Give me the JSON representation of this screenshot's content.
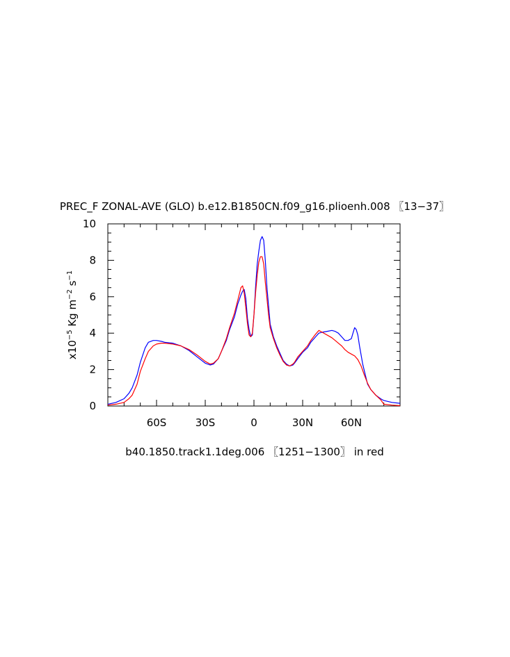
{
  "chart_data": {
    "type": "line",
    "title": "PREC_F ZONAL-AVE (GLO) b.e12.B1850CN.f09_g16.plioenh.008 〖13−37〗",
    "xlabel": "b40.1850.track1.1deg.006 〖1251−1300〗 in red",
    "ylabel": {
      "base": "x10",
      "exp": "−5",
      "unit1": " Kg m",
      "exp2": "−2",
      "unit2": " s",
      "exp3": "−1"
    },
    "xlim": [
      -90,
      90
    ],
    "ylim": [
      0,
      10
    ],
    "xticks": [
      {
        "value": -60,
        "label": "60S"
      },
      {
        "value": -30,
        "label": "30S"
      },
      {
        "value": 0,
        "label": "0"
      },
      {
        "value": 30,
        "label": "30N"
      },
      {
        "value": 60,
        "label": "60N"
      }
    ],
    "yticks": [
      {
        "value": 0,
        "label": "0"
      },
      {
        "value": 2,
        "label": "2"
      },
      {
        "value": 4,
        "label": "4"
      },
      {
        "value": 6,
        "label": "6"
      },
      {
        "value": 8,
        "label": "8"
      },
      {
        "value": 10,
        "label": "10"
      }
    ],
    "series": [
      {
        "color": "#0000ff",
        "x": [
          -90,
          -85,
          -80,
          -77,
          -75,
          -72,
          -70,
          -67,
          -65,
          -62,
          -60,
          -57,
          -55,
          -50,
          -45,
          -40,
          -35,
          -30,
          -27,
          -25,
          -22,
          -20,
          -17,
          -15,
          -12,
          -10,
          -8,
          -7,
          -6,
          -5,
          -4,
          -3,
          -2,
          -1,
          0,
          1,
          2,
          3,
          4,
          5,
          6,
          7,
          8,
          9,
          10,
          12,
          14,
          16,
          18,
          20,
          22,
          24,
          25,
          27,
          30,
          33,
          35,
          38,
          40,
          42,
          45,
          48,
          50,
          52,
          54,
          56,
          58,
          60,
          61,
          62,
          63,
          64,
          65,
          67,
          70,
          72,
          75,
          78,
          80,
          85,
          90
        ],
        "y": [
          0.1,
          0.2,
          0.4,
          0.7,
          1.0,
          1.7,
          2.4,
          3.2,
          3.5,
          3.6,
          3.6,
          3.55,
          3.5,
          3.45,
          3.3,
          3.05,
          2.7,
          2.35,
          2.25,
          2.3,
          2.6,
          3.0,
          3.6,
          4.2,
          4.9,
          5.6,
          6.1,
          6.3,
          6.4,
          5.9,
          4.8,
          4.2,
          3.8,
          3.9,
          5.0,
          6.5,
          7.8,
          8.5,
          9.1,
          9.3,
          9.1,
          8.0,
          6.5,
          5.5,
          4.5,
          3.8,
          3.3,
          2.9,
          2.5,
          2.3,
          2.2,
          2.25,
          2.35,
          2.6,
          2.95,
          3.2,
          3.5,
          3.8,
          4.0,
          4.05,
          4.1,
          4.15,
          4.1,
          4.0,
          3.8,
          3.6,
          3.6,
          3.7,
          4.0,
          4.3,
          4.2,
          3.9,
          3.3,
          2.3,
          1.2,
          0.9,
          0.6,
          0.4,
          0.3,
          0.2,
          0.15
        ]
      },
      {
        "color": "#ff0000",
        "x": [
          -90,
          -85,
          -80,
          -77,
          -75,
          -72,
          -70,
          -67,
          -65,
          -62,
          -60,
          -57,
          -55,
          -50,
          -45,
          -40,
          -35,
          -30,
          -27,
          -25,
          -22,
          -20,
          -17,
          -15,
          -12,
          -10,
          -8,
          -7,
          -6,
          -5,
          -4,
          -3,
          -2,
          -1,
          0,
          1,
          2,
          3,
          4,
          5,
          6,
          7,
          8,
          9,
          10,
          12,
          14,
          16,
          18,
          20,
          22,
          24,
          25,
          27,
          30,
          33,
          35,
          38,
          40,
          42,
          45,
          48,
          50,
          52,
          54,
          56,
          58,
          60,
          62,
          64,
          66,
          68,
          70,
          72,
          75,
          78,
          80,
          85,
          90
        ],
        "y": [
          0.05,
          0.1,
          0.2,
          0.4,
          0.6,
          1.2,
          1.9,
          2.6,
          3.0,
          3.3,
          3.4,
          3.45,
          3.45,
          3.4,
          3.3,
          3.1,
          2.8,
          2.45,
          2.3,
          2.35,
          2.6,
          3.0,
          3.7,
          4.3,
          5.1,
          5.8,
          6.5,
          6.6,
          6.2,
          5.4,
          4.5,
          3.9,
          3.8,
          4.0,
          5.0,
          6.2,
          7.2,
          7.9,
          8.2,
          8.2,
          7.8,
          6.8,
          5.9,
          5.0,
          4.3,
          3.7,
          3.2,
          2.8,
          2.45,
          2.25,
          2.2,
          2.3,
          2.4,
          2.7,
          3.0,
          3.3,
          3.6,
          3.95,
          4.15,
          4.05,
          3.9,
          3.75,
          3.6,
          3.45,
          3.3,
          3.1,
          2.95,
          2.85,
          2.75,
          2.55,
          2.2,
          1.7,
          1.25,
          0.9,
          0.6,
          0.35,
          0.1,
          0.05,
          0.02
        ]
      }
    ]
  }
}
